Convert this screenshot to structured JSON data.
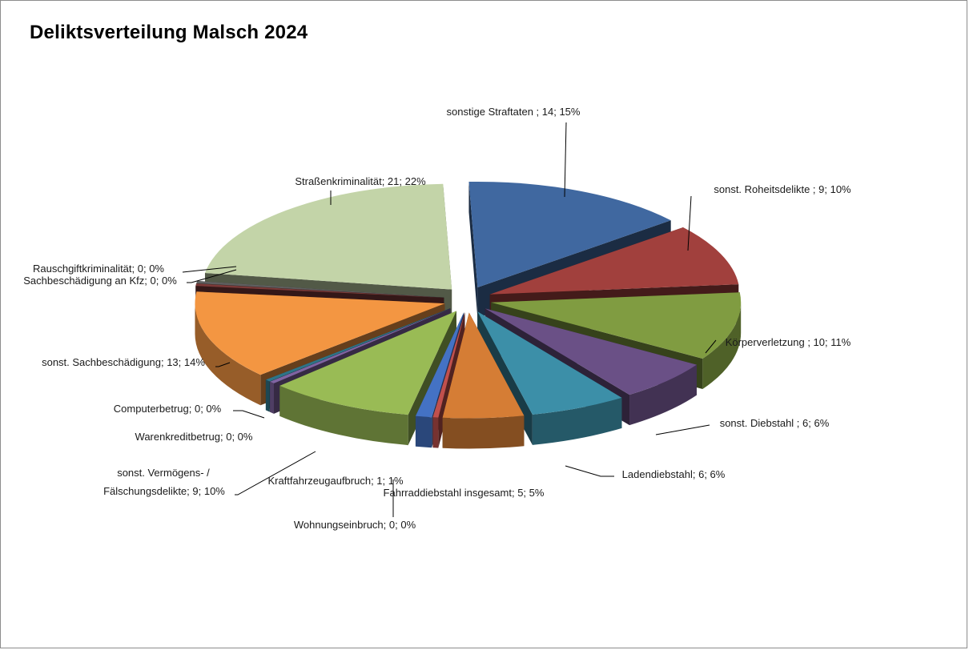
{
  "chart_data": {
    "type": "pie",
    "title": "Deliktsverteilung Malsch 2024",
    "style": "3d-exploded",
    "legend": "none",
    "slices": [
      {
        "label": "sonstige Straftaten ",
        "value": 14,
        "percent": "15%",
        "color": "#4068A0"
      },
      {
        "label": "sonst. Roheitsdelikte ",
        "value": 9,
        "percent": "10%",
        "color": "#A1403D"
      },
      {
        "label": "Körperverletzung ",
        "value": 10,
        "percent": "11%",
        "color": "#809C41"
      },
      {
        "label": "sonst. Diebstahl ",
        "value": 6,
        "percent": "6%",
        "color": "#6A5086"
      },
      {
        "label": "Ladendiebstahl",
        "value": 6,
        "percent": "6%",
        "color": "#3C8FA8"
      },
      {
        "label": "Fahrraddiebstahl insgesamt",
        "value": 5,
        "percent": "5%",
        "color": "#D57D35"
      },
      {
        "label": "Wohnungseinbruch",
        "value": 0,
        "percent": "0%",
        "color": "#C0504D"
      },
      {
        "label": "Kraftfahrzeugaufbruch",
        "value": 1,
        "percent": "1%",
        "color": "#4472C4"
      },
      {
        "label": "sonst. Vermögens- / Fälschungsdelikte",
        "value": 9,
        "percent": "10%",
        "color": "#99BB55"
      },
      {
        "label": "Warenkreditbetrug",
        "value": 0,
        "percent": "0%",
        "color": "#8064A2"
      },
      {
        "label": "Computerbetrug",
        "value": 0,
        "percent": "0%",
        "color": "#2E7488"
      },
      {
        "label": "sonst. Sachbeschädigung",
        "value": 13,
        "percent": "14%",
        "color": "#F39642"
      },
      {
        "label": "Sachbeschädigung an Kfz",
        "value": 0,
        "percent": "0%",
        "color": "#7B3A38"
      },
      {
        "label": "Rauschgiftkriminalität",
        "value": 0,
        "percent": "0%",
        "color": "#5F5F5F"
      },
      {
        "label": "Straßenkriminalität",
        "value": 21,
        "percent": "22%",
        "color": "#C3D4A8"
      }
    ],
    "labels": [
      "sonstige Straftaten ; 14; 15%",
      "sonst. Roheitsdelikte ; 9; 10%",
      "Körperverletzung ; 10; 11%",
      "sonst. Diebstahl ; 6; 6%",
      "Ladendiebstahl; 6; 6%",
      "Fahrraddiebstahl insgesamt; 5; 5%",
      "Wohnungseinbruch; 0; 0%",
      "Kraftfahrzeugaufbruch; 1; 1%",
      "sonst. Vermögens- /",
      "Fälschungsdelikte; 9; 10%",
      "Warenkreditbetrug; 0; 0%",
      "Computerbetrug; 0; 0%",
      "sonst. Sachbeschädigung; 13; 14%",
      "Sachbeschädigung an Kfz; 0; 0%",
      "Rauschgiftkriminalität; 0; 0%",
      "Straßenkriminalität; 21; 22%"
    ]
  }
}
